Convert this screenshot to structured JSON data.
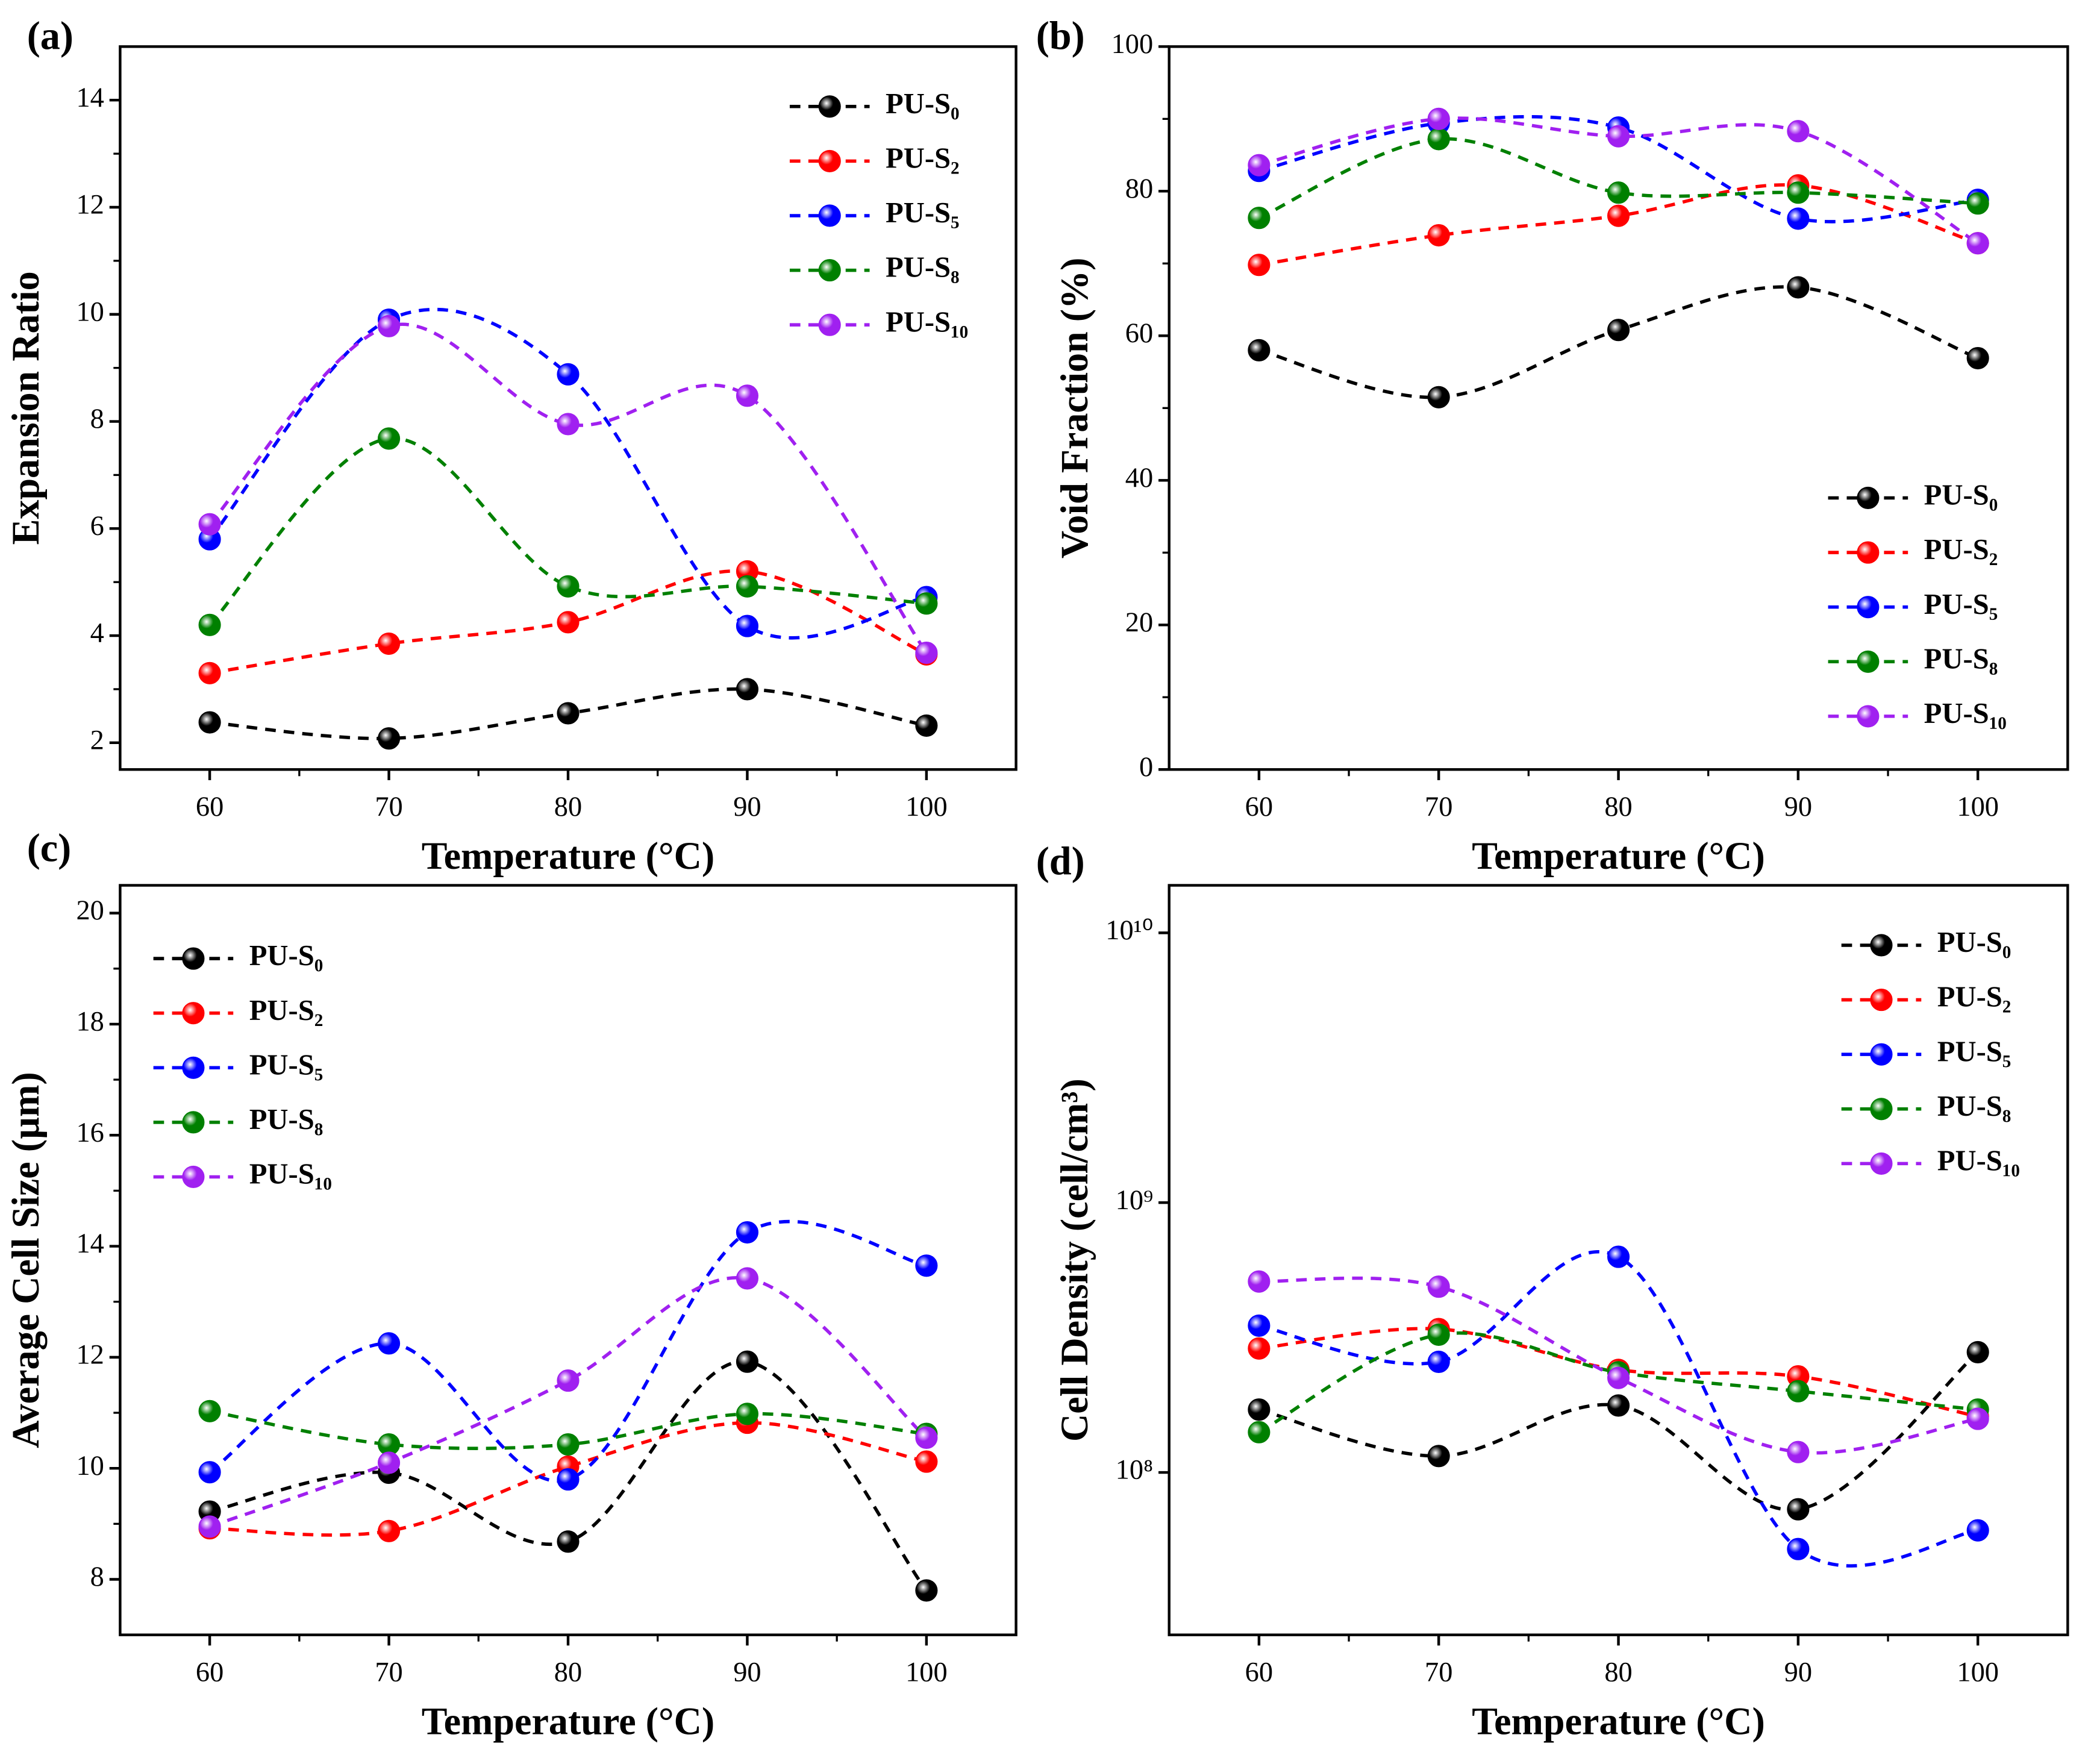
{
  "chart_data": [
    {
      "type": "line",
      "panel_label": "(a)",
      "x_label": "Temperature (°C)",
      "y_label": "Expansion Ratio",
      "x": [
        60,
        70,
        80,
        90,
        100
      ],
      "xlim": [
        55,
        105
      ],
      "xticks": [
        60,
        70,
        80,
        90,
        100
      ],
      "ylim": [
        1.5,
        15
      ],
      "yticks": [
        2,
        4,
        6,
        8,
        10,
        12,
        14
      ],
      "legend": "upper right",
      "series": [
        {
          "name": "PU-S₀",
          "color": "#000000",
          "values": [
            2.38,
            2.08,
            2.55,
            3.0,
            2.32
          ]
        },
        {
          "name": "PU-S₂",
          "color": "#ff0000",
          "values": [
            3.3,
            3.85,
            4.25,
            5.2,
            3.65
          ]
        },
        {
          "name": "PU-S₅",
          "color": "#0000ff",
          "values": [
            5.8,
            9.9,
            8.88,
            4.18,
            4.72
          ]
        },
        {
          "name": "PU-S₈",
          "color": "#008000",
          "values": [
            4.2,
            7.68,
            4.92,
            4.92,
            4.6
          ]
        },
        {
          "name": "PU-S₁₀",
          "color": "#a020f0",
          "values": [
            6.08,
            9.78,
            7.95,
            8.48,
            3.68
          ]
        }
      ]
    },
    {
      "type": "line",
      "panel_label": "(b)",
      "x_label": "Temperature (°C)",
      "y_label": "Void Fraction (%)",
      "x": [
        60,
        70,
        80,
        90,
        100
      ],
      "xlim": [
        55,
        105
      ],
      "xticks": [
        60,
        70,
        80,
        90,
        100
      ],
      "ylim": [
        0,
        100
      ],
      "yticks": [
        0,
        20,
        40,
        60,
        80,
        100
      ],
      "legend": "lower right",
      "series": [
        {
          "name": "PU-S₀",
          "color": "#000000",
          "values": [
            58,
            51.5,
            60.8,
            66.7,
            56.9
          ]
        },
        {
          "name": "PU-S₂",
          "color": "#ff0000",
          "values": [
            69.8,
            73.9,
            76.6,
            80.8,
            72.8
          ]
        },
        {
          "name": "PU-S₅",
          "color": "#0000ff",
          "values": [
            82.8,
            89.4,
            88.8,
            76.2,
            78.8
          ]
        },
        {
          "name": "PU-S₈",
          "color": "#008000",
          "values": [
            76.3,
            87.2,
            79.8,
            79.8,
            78.3
          ]
        },
        {
          "name": "PU-S₁₀",
          "color": "#a020f0",
          "values": [
            83.6,
            90,
            87.6,
            88.3,
            72.8
          ]
        }
      ]
    },
    {
      "type": "line",
      "panel_label": "(c)",
      "x_label": "Temperature (°C)",
      "y_label": "Average Cell Size (µm)",
      "x": [
        60,
        70,
        80,
        90,
        100
      ],
      "xlim": [
        55,
        105
      ],
      "xticks": [
        60,
        70,
        80,
        90,
        100
      ],
      "ylim": [
        7,
        20.5
      ],
      "yticks": [
        8,
        10,
        12,
        14,
        16,
        18,
        20
      ],
      "legend": "upper left",
      "series": [
        {
          "name": "PU-S₀",
          "color": "#000000",
          "values": [
            9.22,
            9.92,
            8.68,
            11.92,
            7.8
          ]
        },
        {
          "name": "PU-S₂",
          "color": "#ff0000",
          "values": [
            8.92,
            8.87,
            10.03,
            10.82,
            10.12
          ]
        },
        {
          "name": "PU-S₅",
          "color": "#0000ff",
          "values": [
            9.93,
            12.25,
            9.8,
            14.25,
            13.65
          ]
        },
        {
          "name": "PU-S₈",
          "color": "#008000",
          "values": [
            11.03,
            10.43,
            10.43,
            10.98,
            10.62
          ]
        },
        {
          "name": "PU-S₁₀",
          "color": "#a020f0",
          "values": [
            8.95,
            10.1,
            11.58,
            13.42,
            10.55
          ]
        }
      ]
    },
    {
      "type": "line",
      "panel_label": "(d)",
      "x_label": "Temperature (°C)",
      "y_label": "Cell Density (cell/cm³)",
      "x": [
        60,
        70,
        80,
        90,
        100
      ],
      "xlim": [
        55,
        105
      ],
      "xticks": [
        60,
        70,
        80,
        90,
        100
      ],
      "ylim": [
        25000000,
        15000000000
      ],
      "y_scale": "log",
      "yticks": [
        {
          "value": 100000000,
          "label": "10⁸"
        },
        {
          "value": 1000000000,
          "label": "10⁹"
        },
        {
          "value": 10000000000,
          "label": "10¹⁰"
        }
      ],
      "legend": "upper right",
      "series": [
        {
          "name": "PU-S₀",
          "color": "#000000",
          "values": [
            171000000,
            115000000,
            177000000,
            73000000,
            279000000
          ]
        },
        {
          "name": "PU-S₂",
          "color": "#ff0000",
          "values": [
            288000000,
            340000000,
            240000000,
            227000000,
            161000000
          ]
        },
        {
          "name": "PU-S₅",
          "color": "#0000ff",
          "values": [
            350000000,
            257000000,
            630000000,
            52000000,
            61000000
          ]
        },
        {
          "name": "PU-S₈",
          "color": "#008000",
          "values": [
            141000000,
            324000000,
            235000000,
            200000000,
            171000000
          ]
        },
        {
          "name": "PU-S₁₀",
          "color": "#a020f0",
          "values": [
            510000000,
            488000000,
            224000000,
            119000000,
            158000000
          ]
        }
      ]
    }
  ]
}
